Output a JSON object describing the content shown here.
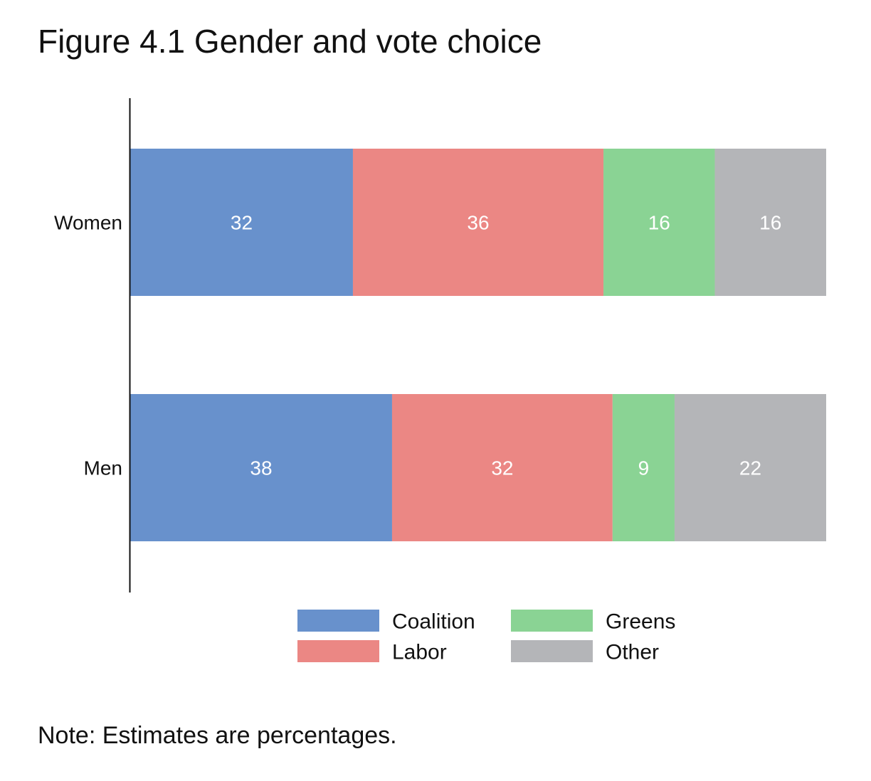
{
  "figure": {
    "title": "Figure 4.1 Gender and vote choice",
    "note": "Note: Estimates are percentages."
  },
  "colors": {
    "Coalition": "#6891cc",
    "Labor": "#eb8784",
    "Greens": "#8ad394",
    "Other": "#b4b5b8",
    "label_text": "#ffffff",
    "axis": "#111111"
  },
  "chart_data": {
    "type": "bar",
    "orientation": "horizontal",
    "stacked": true,
    "categories": [
      "Women",
      "Men"
    ],
    "series": [
      {
        "name": "Coalition",
        "values": [
          32,
          38
        ]
      },
      {
        "name": "Labor",
        "values": [
          36,
          32
        ]
      },
      {
        "name": "Greens",
        "values": [
          16,
          9
        ]
      },
      {
        "name": "Other",
        "values": [
          16,
          22
        ]
      }
    ],
    "data_labels": [
      [
        "32",
        "38"
      ],
      [
        "36",
        "32"
      ],
      [
        "16",
        "9"
      ],
      [
        "16",
        "22"
      ]
    ],
    "xlim": [
      0,
      100
    ],
    "grid": false,
    "legend": {
      "position": "bottom",
      "entries": [
        "Coalition",
        "Greens",
        "Labor",
        "Other"
      ]
    }
  }
}
